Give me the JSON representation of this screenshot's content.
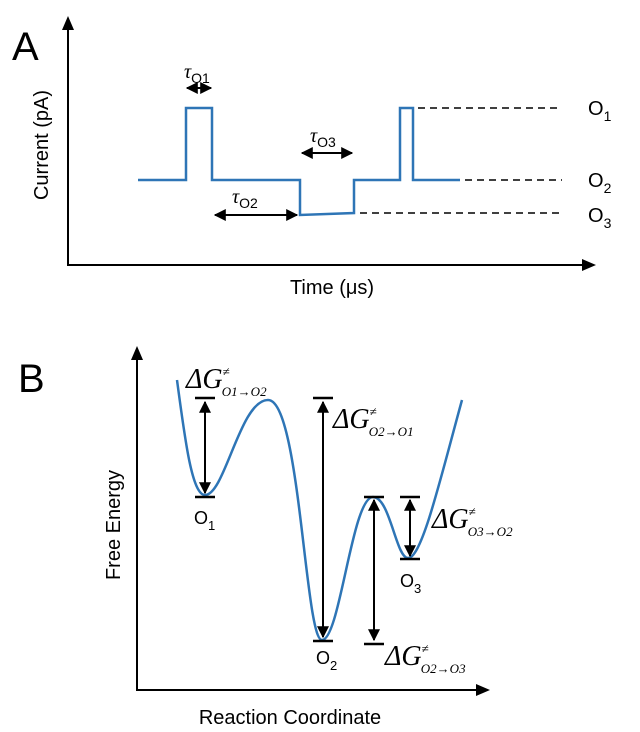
{
  "panel_a": {
    "label": "A",
    "y_axis": "Current  (pA)",
    "x_axis": "Time (μs)",
    "dwell_times": [
      {
        "symbol": "τ",
        "subscript": "O1"
      },
      {
        "symbol": "τ",
        "subscript": "O2"
      },
      {
        "symbol": "τ",
        "subscript": "O3"
      }
    ],
    "states": [
      {
        "letter": "O",
        "subscript": "1"
      },
      {
        "letter": "O",
        "subscript": "2"
      },
      {
        "letter": "O",
        "subscript": "3"
      }
    ]
  },
  "panel_b": {
    "label": "B",
    "y_axis": "Free Energy",
    "x_axis": "Reaction Coordinate",
    "states": [
      {
        "letter": "O",
        "subscript": "1"
      },
      {
        "letter": "O",
        "subscript": "2"
      },
      {
        "letter": "O",
        "subscript": "3"
      }
    ],
    "barriers": [
      {
        "symbol": "ΔG",
        "superscript": "≠",
        "subscript": "O1→O2"
      },
      {
        "symbol": "ΔG",
        "superscript": "≠",
        "subscript": "O2→O1"
      },
      {
        "symbol": "ΔG",
        "superscript": "≠",
        "subscript": "O3→O2"
      },
      {
        "symbol": "ΔG",
        "superscript": "≠",
        "subscript": "O2→O3"
      }
    ]
  }
}
